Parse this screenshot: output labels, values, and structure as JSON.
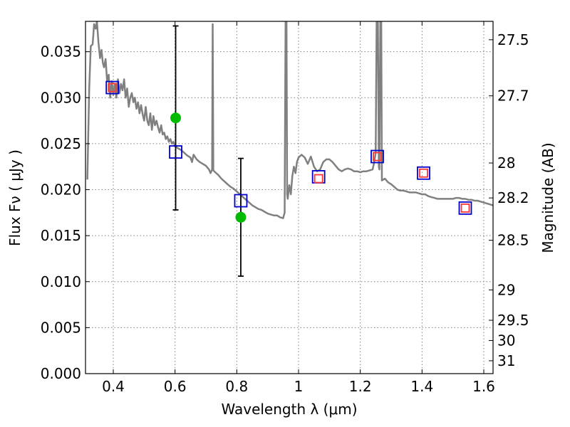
{
  "chart_data": {
    "type": "scatter",
    "title": "",
    "xlabel": "Wavelength  λ (μm)",
    "ylabel": "Flux  Fν  ( μJy )",
    "y2label": "Magnitude (AB)",
    "xlim": [
      0.31,
      1.63
    ],
    "ylim": [
      0.0,
      0.0383
    ],
    "grid": true,
    "x_ticks": [
      "0.4",
      "0.6",
      "0.8",
      "1",
      "1.2",
      "1.4",
      "1.6"
    ],
    "y_ticks": [
      "0.000",
      "0.005",
      "0.010",
      "0.015",
      "0.020",
      "0.025",
      "0.030",
      "0.035"
    ],
    "y2_ticks": [
      {
        "label": "27.5",
        "flux": 0.0363
      },
      {
        "label": "27.7",
        "flux": 0.0302
      },
      {
        "label": "28",
        "flux": 0.0229
      },
      {
        "label": "28.2",
        "flux": 0.0191
      },
      {
        "label": "28.5",
        "flux": 0.0145
      },
      {
        "label": "29",
        "flux": 0.0091
      },
      {
        "label": "29.5",
        "flux": 0.0058
      },
      {
        "label": "30",
        "flux": 0.0036
      },
      {
        "label": "31",
        "flux": 0.0014
      }
    ],
    "series": [
      {
        "type": "line",
        "color": "#808080",
        "points": [
          [
            0.316,
            0.0211
          ],
          [
            0.322,
            0.031
          ],
          [
            0.327,
            0.0356
          ],
          [
            0.333,
            0.0358
          ],
          [
            0.338,
            0.038
          ],
          [
            0.343,
            0.0375
          ],
          [
            0.347,
            0.0383
          ],
          [
            0.352,
            0.036
          ],
          [
            0.357,
            0.0343
          ],
          [
            0.362,
            0.0352
          ],
          [
            0.366,
            0.0338
          ],
          [
            0.37,
            0.0333
          ],
          [
            0.375,
            0.0342
          ],
          [
            0.38,
            0.0318
          ],
          [
            0.385,
            0.0325
          ],
          [
            0.39,
            0.03
          ],
          [
            0.395,
            0.0318
          ],
          [
            0.4,
            0.0303
          ],
          [
            0.405,
            0.0315
          ],
          [
            0.41,
            0.03
          ],
          [
            0.415,
            0.032
          ],
          [
            0.42,
            0.0305
          ],
          [
            0.425,
            0.0315
          ],
          [
            0.43,
            0.0308
          ],
          [
            0.435,
            0.032
          ],
          [
            0.44,
            0.03
          ],
          [
            0.445,
            0.031
          ],
          [
            0.45,
            0.029
          ],
          [
            0.455,
            0.03
          ],
          [
            0.46,
            0.0305
          ],
          [
            0.465,
            0.0295
          ],
          [
            0.47,
            0.03
          ],
          [
            0.475,
            0.0288
          ],
          [
            0.48,
            0.0295
          ],
          [
            0.485,
            0.0283
          ],
          [
            0.49,
            0.0292
          ],
          [
            0.495,
            0.0282
          ],
          [
            0.5,
            0.0275
          ],
          [
            0.505,
            0.029
          ],
          [
            0.51,
            0.0275
          ],
          [
            0.515,
            0.027
          ],
          [
            0.52,
            0.0283
          ],
          [
            0.525,
            0.0265
          ],
          [
            0.53,
            0.028
          ],
          [
            0.535,
            0.027
          ],
          [
            0.54,
            0.0275
          ],
          [
            0.545,
            0.0268
          ],
          [
            0.55,
            0.0262
          ],
          [
            0.555,
            0.027
          ],
          [
            0.56,
            0.026
          ],
          [
            0.565,
            0.0262
          ],
          [
            0.57,
            0.0255
          ],
          [
            0.575,
            0.0258
          ],
          [
            0.58,
            0.0252
          ],
          [
            0.585,
            0.0255
          ],
          [
            0.59,
            0.025
          ],
          [
            0.595,
            0.0252
          ],
          [
            0.6,
            0.0247
          ],
          [
            0.61,
            0.0245
          ],
          [
            0.62,
            0.0243
          ],
          [
            0.63,
            0.024
          ],
          [
            0.64,
            0.0237
          ],
          [
            0.65,
            0.0235
          ],
          [
            0.655,
            0.023
          ],
          [
            0.66,
            0.0238
          ],
          [
            0.67,
            0.0233
          ],
          [
            0.68,
            0.023
          ],
          [
            0.69,
            0.0228
          ],
          [
            0.7,
            0.0226
          ],
          [
            0.71,
            0.0222
          ],
          [
            0.715,
            0.0218
          ],
          [
            0.72,
            0.0222
          ],
          [
            0.722,
            0.038
          ],
          [
            0.724,
            0.0221
          ],
          [
            0.73,
            0.0219
          ],
          [
            0.74,
            0.0216
          ],
          [
            0.75,
            0.0212
          ],
          [
            0.76,
            0.0209
          ],
          [
            0.77,
            0.0206
          ],
          [
            0.78,
            0.0203
          ],
          [
            0.79,
            0.0201
          ],
          [
            0.8,
            0.0198
          ],
          [
            0.81,
            0.0195
          ],
          [
            0.82,
            0.0192
          ],
          [
            0.83,
            0.0189
          ],
          [
            0.84,
            0.0186
          ],
          [
            0.85,
            0.0183
          ],
          [
            0.86,
            0.0181
          ],
          [
            0.87,
            0.0179
          ],
          [
            0.88,
            0.0178
          ],
          [
            0.89,
            0.0176
          ],
          [
            0.9,
            0.0174
          ],
          [
            0.91,
            0.0173
          ],
          [
            0.92,
            0.0172
          ],
          [
            0.93,
            0.0172
          ],
          [
            0.94,
            0.017
          ],
          [
            0.95,
            0.0169
          ],
          [
            0.955,
            0.0175
          ],
          [
            0.958,
            0.0383
          ],
          [
            0.961,
            0.0383
          ],
          [
            0.963,
            0.0195
          ],
          [
            0.965,
            0.019
          ],
          [
            0.97,
            0.0205
          ],
          [
            0.975,
            0.0195
          ],
          [
            0.98,
            0.0215
          ],
          [
            0.985,
            0.0225
          ],
          [
            0.99,
            0.0218
          ],
          [
            0.995,
            0.023
          ],
          [
            1.0,
            0.0235
          ],
          [
            1.01,
            0.0238
          ],
          [
            1.02,
            0.0235
          ],
          [
            1.03,
            0.0228
          ],
          [
            1.04,
            0.0236
          ],
          [
            1.05,
            0.0225
          ],
          [
            1.06,
            0.022
          ],
          [
            1.07,
            0.0222
          ],
          [
            1.08,
            0.023
          ],
          [
            1.09,
            0.0233
          ],
          [
            1.1,
            0.0233
          ],
          [
            1.11,
            0.023
          ],
          [
            1.12,
            0.0226
          ],
          [
            1.13,
            0.0222
          ],
          [
            1.14,
            0.022
          ],
          [
            1.15,
            0.0222
          ],
          [
            1.16,
            0.0223
          ],
          [
            1.17,
            0.0222
          ],
          [
            1.18,
            0.022
          ],
          [
            1.19,
            0.022
          ],
          [
            1.2,
            0.0219
          ],
          [
            1.21,
            0.022
          ],
          [
            1.22,
            0.022
          ],
          [
            1.23,
            0.0221
          ],
          [
            1.24,
            0.0222
          ],
          [
            1.245,
            0.023
          ],
          [
            1.25,
            0.024
          ],
          [
            1.253,
            0.0383
          ],
          [
            1.257,
            0.0383
          ],
          [
            1.26,
            0.0225
          ],
          [
            1.262,
            0.0222
          ],
          [
            1.265,
            0.0383
          ],
          [
            1.268,
            0.0383
          ],
          [
            1.27,
            0.021
          ],
          [
            1.28,
            0.0212
          ],
          [
            1.29,
            0.0208
          ],
          [
            1.3,
            0.0206
          ],
          [
            1.31,
            0.0203
          ],
          [
            1.32,
            0.02
          ],
          [
            1.33,
            0.0199
          ],
          [
            1.34,
            0.0199
          ],
          [
            1.35,
            0.0198
          ],
          [
            1.36,
            0.0197
          ],
          [
            1.37,
            0.0197
          ],
          [
            1.38,
            0.0197
          ],
          [
            1.39,
            0.0196
          ],
          [
            1.4,
            0.0195
          ],
          [
            1.41,
            0.0195
          ],
          [
            1.42,
            0.0193
          ],
          [
            1.43,
            0.0192
          ],
          [
            1.44,
            0.0191
          ],
          [
            1.45,
            0.019
          ],
          [
            1.46,
            0.019
          ],
          [
            1.47,
            0.019
          ],
          [
            1.48,
            0.019
          ],
          [
            1.49,
            0.019
          ],
          [
            1.5,
            0.019
          ],
          [
            1.51,
            0.0191
          ],
          [
            1.52,
            0.0191
          ],
          [
            1.53,
            0.019
          ],
          [
            1.54,
            0.019
          ],
          [
            1.55,
            0.0189
          ],
          [
            1.56,
            0.0189
          ],
          [
            1.57,
            0.0188
          ],
          [
            1.58,
            0.0188
          ],
          [
            1.59,
            0.0187
          ],
          [
            1.6,
            0.0186
          ],
          [
            1.61,
            0.0185
          ],
          [
            1.62,
            0.0184
          ],
          [
            1.63,
            0.0183
          ]
        ]
      },
      {
        "type": "marker",
        "marker": "open-square",
        "color": "#0000cc",
        "points": [
          [
            0.397,
            0.0311
          ],
          [
            0.602,
            0.0241
          ],
          [
            0.813,
            0.0188
          ],
          [
            1.065,
            0.0214
          ],
          [
            1.255,
            0.0236
          ],
          [
            1.405,
            0.0218
          ],
          [
            1.54,
            0.018
          ]
        ]
      },
      {
        "type": "marker",
        "marker": "open-square",
        "color": "#ff3333",
        "points": [
          [
            0.397,
            0.0311
          ],
          [
            1.065,
            0.0212
          ],
          [
            1.255,
            0.0236
          ],
          [
            1.405,
            0.0218
          ],
          [
            1.54,
            0.018
          ]
        ]
      },
      {
        "type": "marker",
        "marker": "filled-circle",
        "color": "#00bb00",
        "points": [
          [
            0.602,
            0.0278
          ],
          [
            0.813,
            0.017
          ]
        ]
      },
      {
        "type": "errorbar",
        "color": "#000000",
        "bars": [
          {
            "x": 0.602,
            "low": 0.0178,
            "high": 0.0378
          },
          {
            "x": 0.813,
            "low": 0.0106,
            "high": 0.0234
          }
        ]
      }
    ]
  }
}
